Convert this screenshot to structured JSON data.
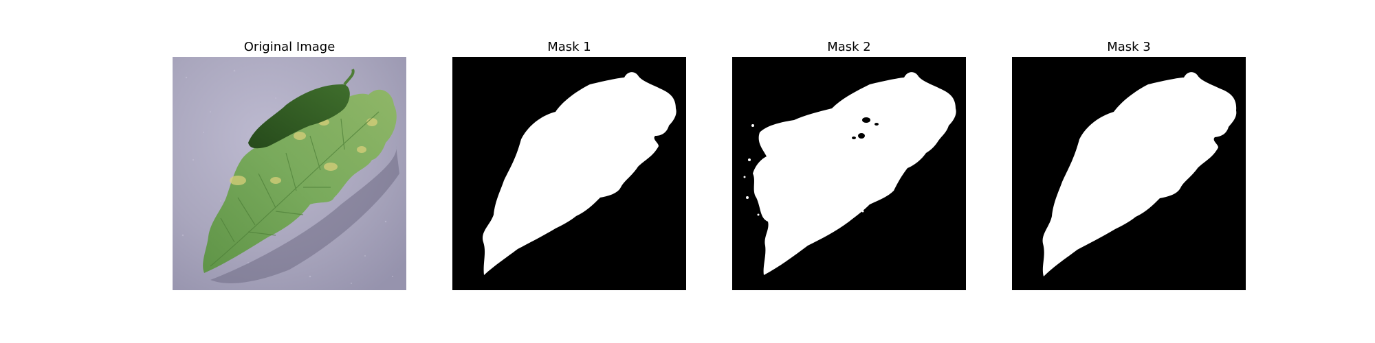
{
  "panels": [
    {
      "title": "Original Image",
      "content": "photo of a green tomato leaf with yellow spots on a grey surface"
    },
    {
      "title": "Mask 1",
      "content": "binary segmentation mask, white leaf on black"
    },
    {
      "title": "Mask 2",
      "content": "binary segmentation mask, white leaf on black with noisy edges and holes"
    },
    {
      "title": "Mask 3",
      "content": "binary segmentation mask, white leaf on black"
    }
  ],
  "colors": {
    "background": "#ffffff",
    "mask_foreground": "#ffffff",
    "mask_background": "#000000",
    "leaf_green": "#6fa356",
    "leaf_dark": "#2f5a22",
    "surface": "#a9a6bd"
  }
}
